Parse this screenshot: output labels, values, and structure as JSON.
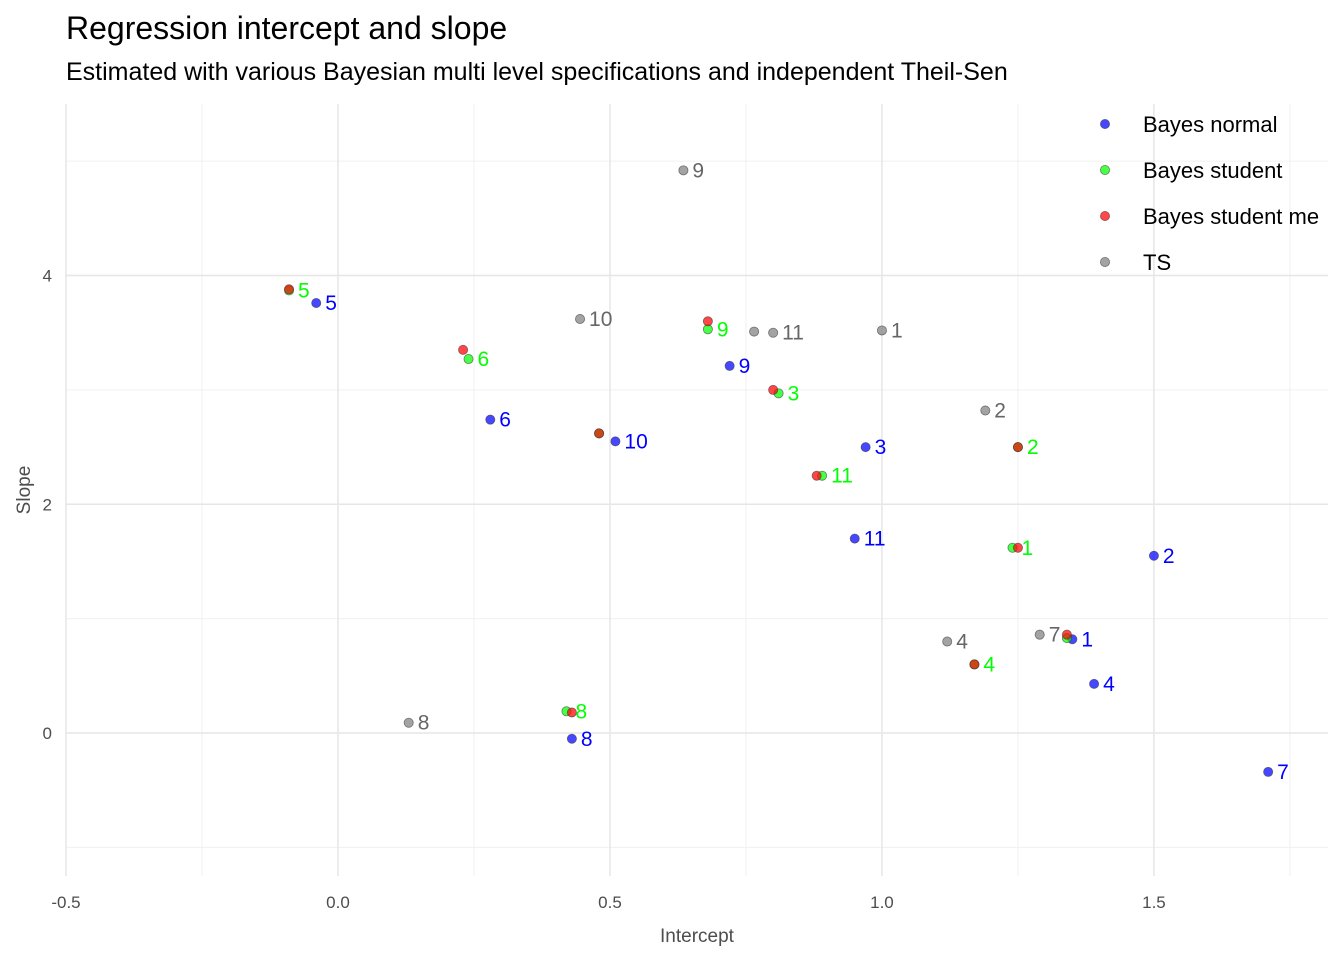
{
  "chart_data": {
    "type": "scatter",
    "title": "Regression intercept and slope",
    "subtitle": "Estimated with various Bayesian multi level specifications and independent Theil-Sen",
    "xlabel": "Intercept",
    "ylabel": "Slope",
    "xlim": [
      -0.5,
      1.82
    ],
    "ylim": [
      -1.25,
      5.5
    ],
    "x_ticks": [
      -0.5,
      0.0,
      0.5,
      1.0,
      1.5
    ],
    "x_tick_labels": [
      "-0.5",
      "0.0",
      "0.5",
      "1.0",
      "1.5"
    ],
    "y_ticks": [
      0,
      2,
      4
    ],
    "y_tick_labels": [
      "0",
      "2",
      "4"
    ],
    "grid": true,
    "legend_position": "top-right",
    "series": [
      {
        "name": "TS",
        "color": "#7f7f7f",
        "label_color": "#666666",
        "points": [
          {
            "label": "1",
            "x": 1.0,
            "y": 3.52
          },
          {
            "label": "2",
            "x": 1.19,
            "y": 2.82
          },
          {
            "label": "4",
            "x": 1.12,
            "y": 0.8
          },
          {
            "label": "7",
            "x": 1.29,
            "y": 0.86
          },
          {
            "label": "8",
            "x": 0.13,
            "y": 0.09
          },
          {
            "label": "9",
            "x": 0.635,
            "y": 4.92
          },
          {
            "label": "10",
            "x": 0.445,
            "y": 3.62
          },
          {
            "label": "11",
            "x": 0.8,
            "y": 3.5
          }
        ],
        "unlabeled_points": [
          {
            "x": 0.765,
            "y": 3.51
          }
        ]
      },
      {
        "name": "Bayes normal",
        "color": "#0000ff",
        "label_color": "#0000ff",
        "points": [
          {
            "label": "1",
            "x": 1.35,
            "y": 0.82
          },
          {
            "label": "2",
            "x": 1.5,
            "y": 1.55
          },
          {
            "label": "3",
            "x": 0.97,
            "y": 2.5
          },
          {
            "label": "4",
            "x": 1.39,
            "y": 0.43
          },
          {
            "label": "5",
            "x": -0.04,
            "y": 3.76
          },
          {
            "label": "6",
            "x": 0.28,
            "y": 2.74
          },
          {
            "label": "7",
            "x": 1.71,
            "y": -0.34
          },
          {
            "label": "8",
            "x": 0.43,
            "y": -0.05
          },
          {
            "label": "9",
            "x": 0.72,
            "y": 3.21
          },
          {
            "label": "10",
            "x": 0.51,
            "y": 2.55
          },
          {
            "label": "11",
            "x": 0.95,
            "y": 1.7
          }
        ]
      },
      {
        "name": "Bayes student",
        "color": "#00ff00",
        "label_color": "#00ff00",
        "points": [
          {
            "label": "1",
            "x": 1.24,
            "y": 1.62
          },
          {
            "label": "2",
            "x": 1.25,
            "y": 2.5
          },
          {
            "label": "3",
            "x": 0.81,
            "y": 2.97
          },
          {
            "label": "4",
            "x": 1.17,
            "y": 0.6
          },
          {
            "label": "5",
            "x": -0.09,
            "y": 3.87
          },
          {
            "label": "6",
            "x": 0.24,
            "y": 3.27
          },
          {
            "label": "8",
            "x": 0.42,
            "y": 0.19
          },
          {
            "label": "9",
            "x": 0.68,
            "y": 3.53
          },
          {
            "label": "11",
            "x": 0.89,
            "y": 2.25
          }
        ],
        "unlabeled_points": [
          {
            "x": 1.34,
            "y": 0.83
          },
          {
            "x": 0.48,
            "y": 2.62
          }
        ]
      },
      {
        "name": "Bayes student me",
        "color": "#ff0000",
        "label_color": "#ff0000",
        "points": [
          {
            "x": 1.25,
            "y": 1.62
          },
          {
            "x": 1.25,
            "y": 2.5
          },
          {
            "x": 0.8,
            "y": 3.0
          },
          {
            "x": 1.17,
            "y": 0.6
          },
          {
            "x": -0.09,
            "y": 3.88
          },
          {
            "x": 0.23,
            "y": 3.35
          },
          {
            "x": 1.34,
            "y": 0.86
          },
          {
            "x": 0.43,
            "y": 0.18
          },
          {
            "x": 0.68,
            "y": 3.6
          },
          {
            "x": 0.48,
            "y": 2.62
          },
          {
            "x": 0.88,
            "y": 2.25
          }
        ]
      }
    ],
    "legend": [
      {
        "name": "Bayes normal",
        "color": "#0000ff"
      },
      {
        "name": "Bayes student",
        "color": "#00ff00"
      },
      {
        "name": "Bayes student me",
        "color": "#ff0000"
      },
      {
        "name": "TS",
        "color": "#7f7f7f"
      }
    ]
  }
}
